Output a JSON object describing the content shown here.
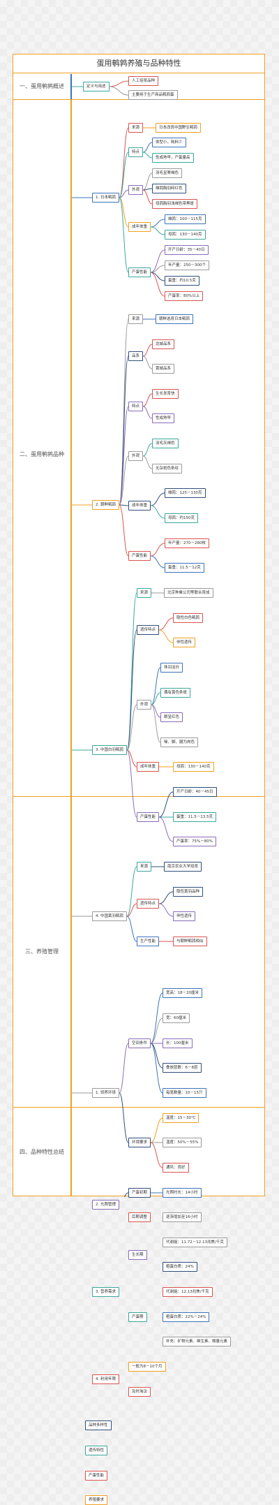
{
  "title": "蛋用鹌鹑养殖与品种特性",
  "sections": {
    "s1": "一、蛋用鹌鹑概述",
    "s2": "二、蛋用鹌鹑品种",
    "s3": "三、养殖管理",
    "s4": "四、品种特性总结"
  },
  "overview": {
    "def": "定义与用途",
    "a": "人工培育品种",
    "b": "主要用于生产商品鹌鹑蛋"
  },
  "jp": {
    "name": "1. 日本鹌鹑",
    "source": "来源",
    "source_v": "日本改良中国野生鹌鹑",
    "feature": "特点",
    "f1": "体型小，耗料少",
    "f2": "性成熟早，产蛋量高",
    "look": "外观",
    "l1": "羽毛呈栗褐色",
    "l2": "雄鹑胸羽砖红色",
    "l3": "母鹑胸羽浅褐色带黑斑",
    "weight": "成年体重",
    "w1": "雄鹑：100－115克",
    "w2": "母鹑：130－140克",
    "perf": "产蛋性能",
    "p1": "开产日龄：35－40日",
    "p2": "年产量：250－300个",
    "p3": "蛋重：约10.5克",
    "p4": "产蛋率：80%以上"
  },
  "ko": {
    "name": "2. 朝鲜鹌鹑",
    "source": "来源",
    "source_v": "朝鲜选育日本鹌鹑",
    "line": "品系",
    "ln1": "龙城品系",
    "ln2": "黄城品系",
    "feature": "特点",
    "f1": "生长发育快",
    "f2": "性成熟早",
    "look": "外观",
    "l1": "羽毛灰褐色",
    "l2": "无杂斑色条纹",
    "weight": "成年体重",
    "w1": "雄鹑：125－130克",
    "w2": "母鹑：约150克",
    "perf": "产蛋性能",
    "p1": "年产量：270－280枚",
    "p2": "蛋重：11.5－12克"
  },
  "cw": {
    "name": "3. 中国白羽鹌鹑",
    "source": "来源",
    "source_v": "北京种禽公司等联合育成",
    "genetic": "遗传特点",
    "g1": "隐性白色鹌鹑",
    "g2": "伴性遗传",
    "look": "外观",
    "l1": "体羽洁白",
    "l2": "偶有黄色条斑",
    "l3": "眼呈红色",
    "l4": "喙、脚、腿为肉色",
    "weight": "成年体重",
    "w1": "母鹑：130－140克",
    "perf": "产蛋性能",
    "p1": "开产日龄：40－45日",
    "p2": "蛋重：11.5－13.5克",
    "p3": "产蛋率：75%－80%"
  },
  "cy": {
    "name": "4. 中国黄羽鹌鹑",
    "source": "来源",
    "source_v": "南京农业大学培育",
    "genetic": "遗传特点",
    "g1": "隐性黄羽品种",
    "g2": "伴性遗传",
    "perf": "生产性能",
    "p1": "与朝鲜鹌鹑相似"
  },
  "env": {
    "name": "1. 饲养环境",
    "space": "空间条件",
    "s1": "宽高：18－20厘米",
    "s2": "宽：60厘米",
    "s3": "长：100厘米",
    "s4": "叠放层数：6－8层",
    "s5": "每笼数量：10－15只",
    "req": "环境要求",
    "r1": "温度：15－30℃",
    "r2": "湿度：50%－55%",
    "r3": "通风：良好"
  },
  "light": {
    "name": "2. 光照管理",
    "early": "产蛋初期",
    "early_v": "光照时长：14小时",
    "late": "后期调整",
    "late_v": "逐渐增加至16小时"
  },
  "feed": {
    "name": "3. 营养需求",
    "grow": "生长期",
    "g1": "代谢能：11.72－12.13兆焦/千克",
    "g2": "粗蛋白质：24%",
    "lay": "产蛋期",
    "y1": "代谢能：12.13兆焦/千克",
    "y2": "粗蛋白质：22%－24%",
    "y3": "补充：矿物元素、维生素、微量元素"
  },
  "use": {
    "name": "4. 利用年限",
    "u1": "一般为8－10个月",
    "u2": "及时淘汰"
  },
  "summary": {
    "a": "品种多样性",
    "b": "遗传特性",
    "c": "产蛋性能",
    "d": "养殖要求"
  },
  "colors": {
    "border": "#f0a020",
    "blue": "#3b73b9",
    "red": "#d9534f",
    "teal": "#3aa79a",
    "purple": "#8a6bb8",
    "orange": "#f0a020"
  }
}
